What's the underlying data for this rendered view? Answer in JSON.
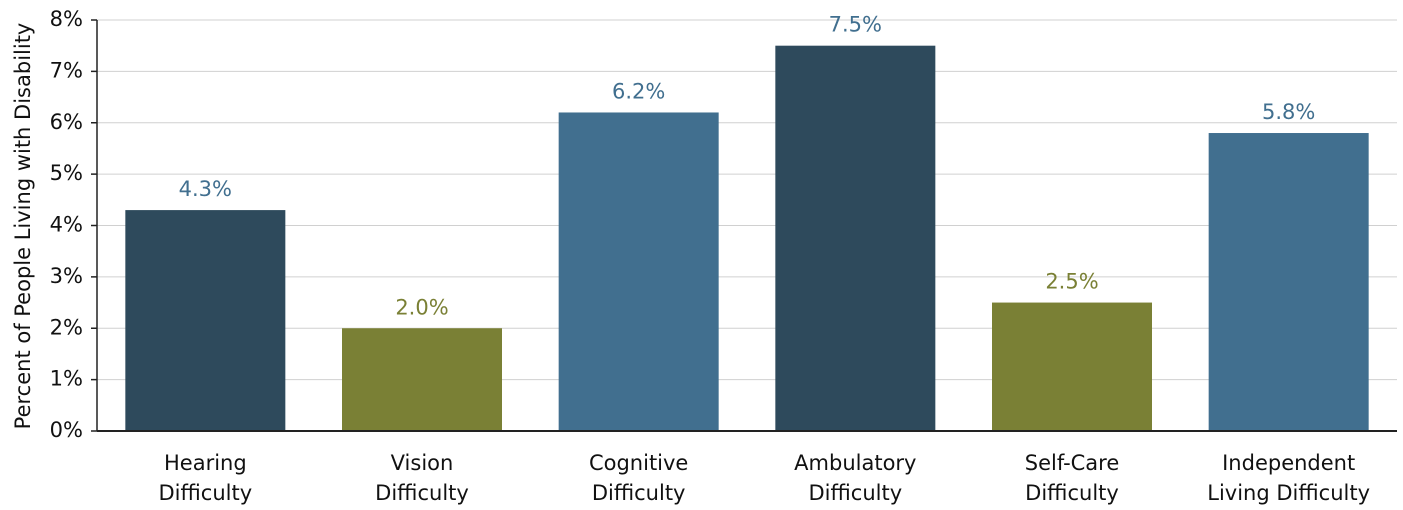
{
  "chart_data": {
    "type": "bar",
    "y_axis_label": "Percent of People Living with Disability",
    "categories": [
      [
        "Hearing",
        "Difficulty"
      ],
      [
        "Vision",
        "Difficulty"
      ],
      [
        "Cognitive",
        "Difficulty"
      ],
      [
        "Ambulatory",
        "Difficulty"
      ],
      [
        "Self-Care",
        "Difficulty"
      ],
      [
        "Independent",
        "Living Difficulty"
      ]
    ],
    "values": [
      4.3,
      2.0,
      6.2,
      7.5,
      2.5,
      5.8
    ],
    "value_labels": [
      "4.3%",
      "2.0%",
      "6.2%",
      "7.5%",
      "2.5%",
      "5.8%"
    ],
    "colors": [
      "#2e4a5c",
      "#7a8035",
      "#416f8f",
      "#2e4a5c",
      "#7a8035",
      "#416f8f"
    ],
    "label_colors": [
      "#416f8f",
      "#7a8035",
      "#416f8f",
      "#416f8f",
      "#7a8035",
      "#416f8f"
    ],
    "ylim": [
      0,
      8
    ],
    "yticks": [
      {
        "value": 0,
        "label": "0%"
      },
      {
        "value": 1,
        "label": "1%"
      },
      {
        "value": 2,
        "label": "2%"
      },
      {
        "value": 3,
        "label": "3%"
      },
      {
        "value": 4,
        "label": "4%"
      },
      {
        "value": 5,
        "label": "5%"
      },
      {
        "value": 6,
        "label": "6%"
      },
      {
        "value": 7,
        "label": "7%"
      },
      {
        "value": 8,
        "label": "8%"
      }
    ],
    "grid": true
  }
}
